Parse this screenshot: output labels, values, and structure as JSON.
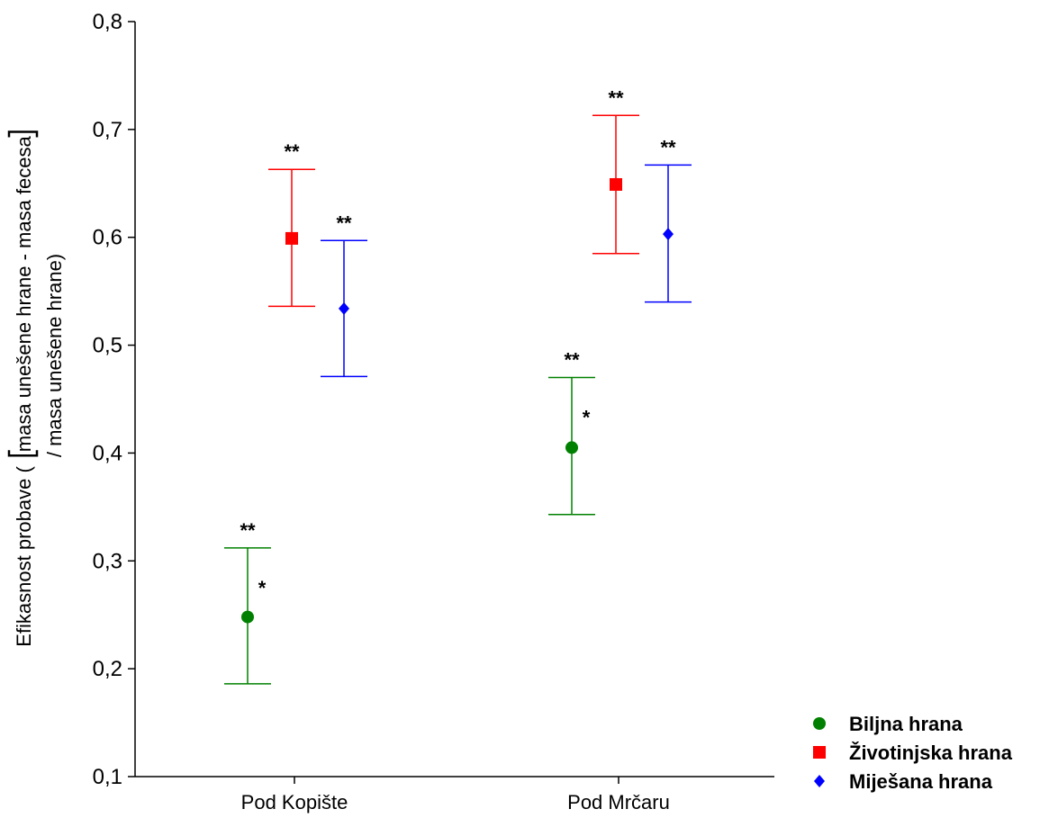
{
  "chart_data": {
    "type": "scatter",
    "categories": [
      "Pod Kopište",
      "Pod Mrčaru"
    ],
    "ylabel_line1_prefix": "Efikasnost probave (",
    "ylabel_line1_inner": "masa unešene hrane - masa fecesa",
    "ylabel_line2": "/ masa unešene hrane)",
    "ylim": [
      0.1,
      0.8
    ],
    "yticks": [
      "0,1",
      "0,2",
      "0,3",
      "0,4",
      "0,5",
      "0,6",
      "0,7",
      "0,8"
    ],
    "grid": false,
    "legend_position": "bottom-right",
    "series": [
      {
        "name": "Biljna hrana",
        "color": "#008000",
        "marker": "circle",
        "values": [
          0.248,
          0.405
        ],
        "lower": [
          0.186,
          0.343
        ],
        "upper": [
          0.312,
          0.47
        ],
        "annotations": [
          {
            "top": "**",
            "side": "*"
          },
          {
            "top": "**",
            "side": "*"
          }
        ]
      },
      {
        "name": "Životinjska hrana",
        "color": "#ff0000",
        "marker": "square",
        "values": [
          0.599,
          0.649
        ],
        "lower": [
          0.536,
          0.585
        ],
        "upper": [
          0.663,
          0.713
        ],
        "annotations": [
          {
            "top": "**",
            "side": ""
          },
          {
            "top": "**",
            "side": ""
          }
        ]
      },
      {
        "name": "Miješana hrana",
        "color": "#0000ff",
        "marker": "diamond",
        "values": [
          0.534,
          0.603
        ],
        "lower": [
          0.471,
          0.54
        ],
        "upper": [
          0.597,
          0.667
        ],
        "annotations": [
          {
            "top": "**",
            "side": ""
          },
          {
            "top": "**",
            "side": ""
          }
        ]
      }
    ]
  }
}
